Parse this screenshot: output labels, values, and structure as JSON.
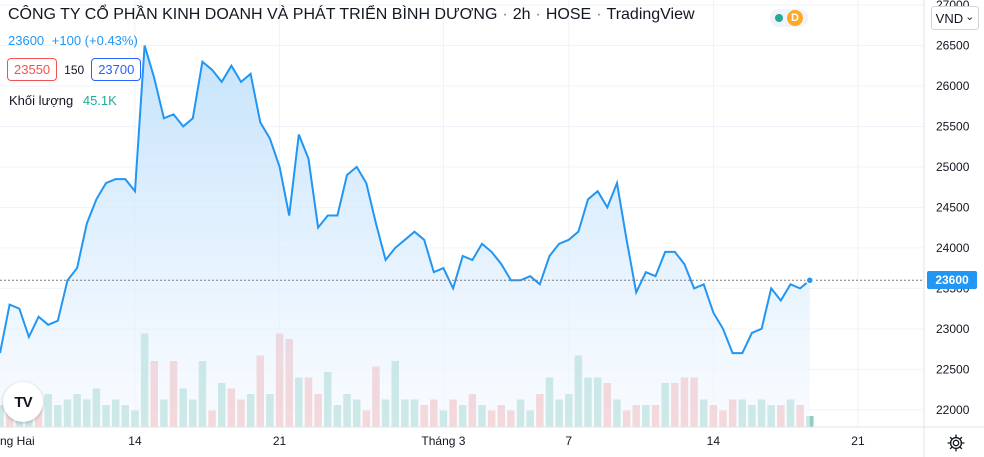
{
  "header": {
    "company": "CÔNG TY CỔ PHẦN KINH DOANH VÀ PHÁT TRIỂN BÌNH DƯƠNG",
    "interval": "2h",
    "exchange": "HOSE",
    "source": "TradingView",
    "sep": "·",
    "status_badge": "D",
    "currency": "VND",
    "currency_chevron": "⌄"
  },
  "quote": {
    "last": "23600",
    "change": "+100 (+0.43%)"
  },
  "bidask": {
    "bid": "23550",
    "spread": "150",
    "ask": "23700"
  },
  "volume": {
    "label": "Khối lượng",
    "value": "45.1K"
  },
  "logo_text": "TV",
  "price_tag": "23600",
  "colors": {
    "line": "#2196f3",
    "area_top": "#bbdefb",
    "area_bottom": "#f5f9ff",
    "vol_up": "#8fcfc2",
    "vol_down": "#f3a7a5",
    "grid": "#f0f3fa",
    "text": "#131722"
  },
  "chart_data": {
    "type": "area",
    "title": "",
    "xlabel": "",
    "ylabel": "",
    "ylim": [
      21800,
      27000
    ],
    "x_ticks": [
      {
        "label": "ng Hai",
        "at": -1
      },
      {
        "label": "14",
        "at": 14
      },
      {
        "label": "21",
        "at": 29
      },
      {
        "label": "Tháng 3",
        "at": 46
      },
      {
        "label": "7",
        "at": 59
      },
      {
        "label": "14",
        "at": 74
      },
      {
        "label": "21",
        "at": 89
      }
    ],
    "y_ticks": [
      22000,
      22500,
      23000,
      23500,
      24000,
      24500,
      25000,
      25500,
      26000,
      26500,
      27000
    ],
    "price": [
      22700,
      23300,
      23250,
      22900,
      23150,
      23050,
      23100,
      23600,
      23750,
      24300,
      24600,
      24800,
      24850,
      24850,
      24700,
      26500,
      26100,
      25600,
      25650,
      25500,
      25600,
      26300,
      26200,
      26050,
      26250,
      26050,
      26150,
      25550,
      25350,
      25000,
      24400,
      25400,
      25100,
      24250,
      24400,
      24400,
      24900,
      25000,
      24800,
      24300,
      23850,
      24000,
      24100,
      24200,
      24100,
      23700,
      23750,
      23500,
      23900,
      23850,
      24050,
      23950,
      23800,
      23600,
      23600,
      23650,
      23550,
      23900,
      24050,
      24100,
      24200,
      24600,
      24700,
      24500,
      24800,
      24100,
      23450,
      23700,
      23650,
      23950,
      23950,
      23800,
      23500,
      23550,
      23200,
      23000,
      22700,
      22700,
      22950,
      23000,
      23500,
      23350,
      23550,
      23500,
      23600
    ],
    "volume": [
      0.04,
      0.05,
      0.05,
      0.03,
      0.05,
      0.06,
      0.04,
      0.05,
      0.06,
      0.05,
      0.07,
      0.04,
      0.05,
      0.04,
      0.03,
      0.17,
      0.12,
      0.05,
      0.12,
      0.07,
      0.05,
      0.12,
      0.03,
      0.08,
      0.07,
      0.05,
      0.06,
      0.13,
      0.06,
      0.17,
      0.16,
      0.09,
      0.09,
      0.06,
      0.1,
      0.04,
      0.06,
      0.05,
      0.03,
      0.11,
      0.05,
      0.12,
      0.05,
      0.05,
      0.04,
      0.05,
      0.03,
      0.05,
      0.04,
      0.06,
      0.04,
      0.03,
      0.04,
      0.03,
      0.05,
      0.03,
      0.06,
      0.09,
      0.05,
      0.06,
      0.13,
      0.09,
      0.09,
      0.08,
      0.05,
      0.03,
      0.04,
      0.04,
      0.04,
      0.08,
      0.08,
      0.09,
      0.09,
      0.05,
      0.04,
      0.03,
      0.05,
      0.05,
      0.04,
      0.05,
      0.04,
      0.04,
      0.05,
      0.04,
      0.02
    ],
    "volume_up": [
      1,
      0,
      1,
      1,
      0,
      1,
      1,
      1,
      1,
      1,
      1,
      1,
      1,
      1,
      1,
      1,
      0,
      1,
      0,
      1,
      1,
      1,
      0,
      1,
      0,
      0,
      1,
      0,
      1,
      0,
      0,
      1,
      0,
      0,
      1,
      1,
      1,
      1,
      0,
      0,
      1,
      1,
      1,
      1,
      0,
      0,
      1,
      0,
      1,
      0,
      1,
      0,
      0,
      0,
      1,
      1,
      0,
      1,
      1,
      1,
      1,
      1,
      1,
      0,
      1,
      0,
      0,
      1,
      0,
      1,
      0,
      0,
      0,
      1,
      0,
      0,
      0,
      1,
      1,
      1,
      1,
      0,
      1,
      0,
      1
    ]
  }
}
